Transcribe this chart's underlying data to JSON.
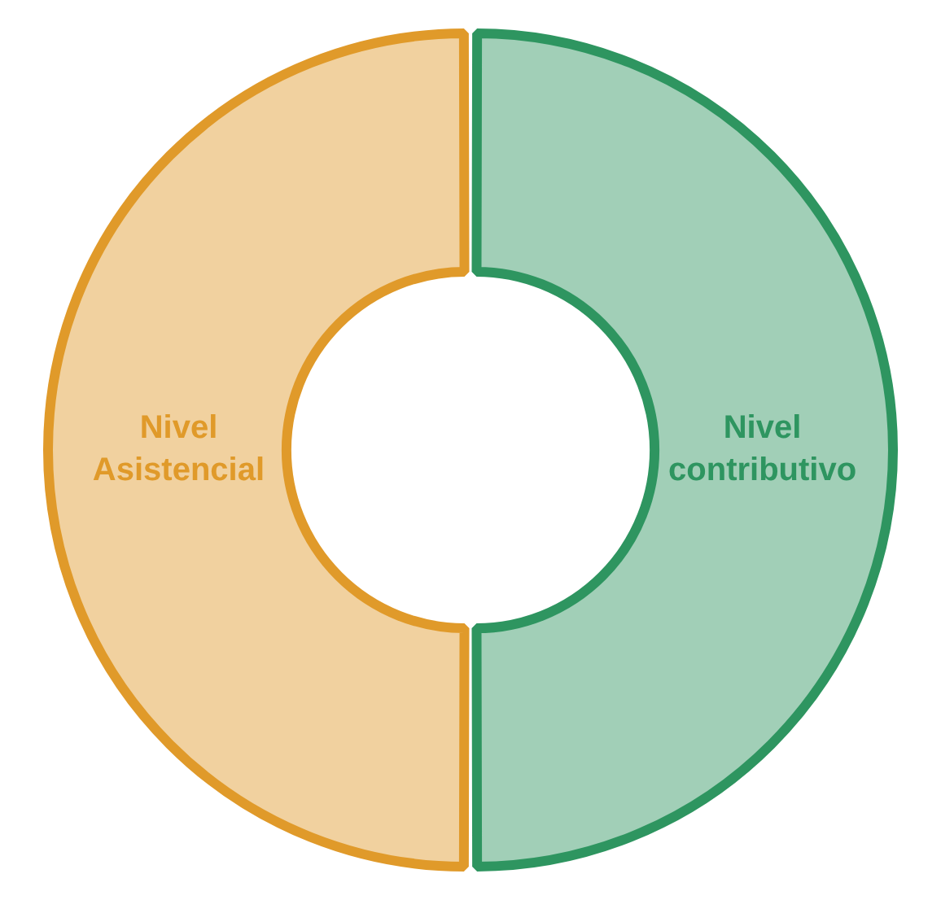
{
  "chart_data": {
    "type": "donut",
    "categories": [
      "Nivel contributivo",
      "Nivel Asistencial"
    ],
    "values": [
      50,
      50
    ],
    "colors": [
      "#2e9560",
      "#e09a2a"
    ],
    "legend": false
  }
}
